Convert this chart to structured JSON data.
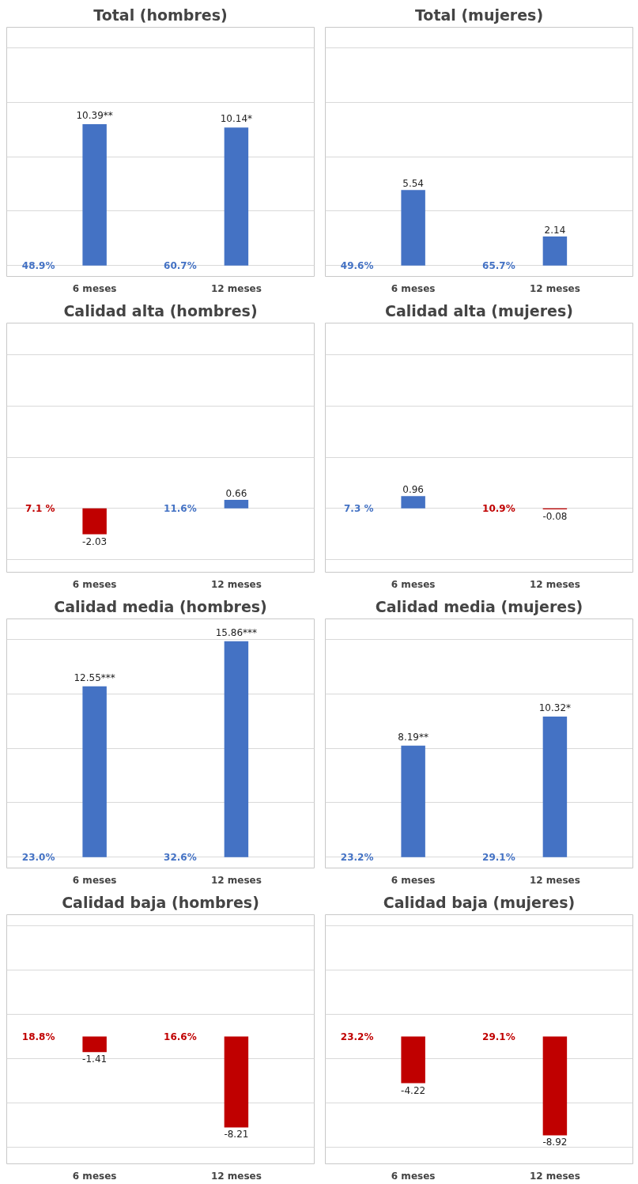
{
  "chart_data": [
    {
      "type": "bar",
      "title": "Total (hombres)",
      "categories": [
        "6 meses",
        "12 meses"
      ],
      "values": [
        10.39,
        10.14
      ],
      "value_labels": [
        "10.39**",
        "10.14*"
      ],
      "colors": [
        "#4472c4",
        "#4472c4"
      ],
      "ylim": [
        -0.8,
        17.5
      ],
      "yticks": [
        {
          "value": 0,
          "label": null
        },
        {
          "value": 4,
          "label": null
        },
        {
          "value": 8,
          "label": null
        },
        {
          "value": 12,
          "label": null
        },
        {
          "value": 16,
          "label": null
        }
      ],
      "grid": "y",
      "tick_labels": "x",
      "annotations": [
        "48.9%",
        "60.7%"
      ]
    },
    {
      "type": "bar",
      "title": "Total (mujeres)",
      "categories": [
        "6 meses",
        "12 meses"
      ],
      "values": [
        5.54,
        2.14
      ],
      "value_labels": [
        "5.54",
        "2.14"
      ],
      "colors": [
        "#4472c4",
        "#4472c4"
      ],
      "ylim": [
        -0.8,
        17.5
      ],
      "yticks": [
        {
          "value": 0,
          "label": null
        },
        {
          "value": 4,
          "label": null
        },
        {
          "value": 8,
          "label": null
        },
        {
          "value": 12,
          "label": null
        },
        {
          "value": 16,
          "label": null
        }
      ],
      "grid": "y",
      "tick_labels": "x",
      "annotations": [
        "49.6%",
        "65.7%"
      ]
    },
    {
      "type": "bar",
      "title": "Calidad alta (hombres)",
      "categories": [
        "6 meses",
        "12 meses"
      ],
      "values": [
        -2.03,
        0.66
      ],
      "value_labels": [
        "-2.03",
        "0.66"
      ],
      "colors": [
        "#c00000",
        "#4472c4"
      ],
      "ylim": [
        -5,
        14.5
      ],
      "yticks": [
        {
          "value": -4,
          "label": null
        },
        {
          "value": 0,
          "label": null
        },
        {
          "value": 4,
          "label": null
        },
        {
          "value": 8,
          "label": null
        },
        {
          "value": 12,
          "label": null
        }
      ],
      "grid": "y",
      "tick_labels": "x",
      "annotations": [
        "7.1 %",
        "11.6%"
      ]
    },
    {
      "type": "bar",
      "title": "Calidad alta (mujeres)",
      "categories": [
        "6 meses",
        "12 meses"
      ],
      "values": [
        0.96,
        -0.08
      ],
      "value_labels": [
        "0.96",
        "-0.08"
      ],
      "colors": [
        "#4472c4",
        "#c00000"
      ],
      "ylim": [
        -5,
        14.5
      ],
      "yticks": [
        {
          "value": -4,
          "label": null
        },
        {
          "value": 0,
          "label": null
        },
        {
          "value": 4,
          "label": null
        },
        {
          "value": 8,
          "label": null
        },
        {
          "value": 12,
          "label": null
        }
      ],
      "grid": "y",
      "tick_labels": "x",
      "annotations": [
        "7.3 %",
        "10.9%"
      ]
    },
    {
      "type": "bar",
      "title": "Calidad media (hombres)",
      "categories": [
        "6 meses",
        "12 meses"
      ],
      "values": [
        12.55,
        15.86
      ],
      "value_labels": [
        "12.55***",
        "15.86***"
      ],
      "colors": [
        "#4472c4",
        "#4472c4"
      ],
      "ylim": [
        -0.8,
        17.5
      ],
      "yticks": [
        {
          "value": 0,
          "label": null
        },
        {
          "value": 4,
          "label": null
        },
        {
          "value": 8,
          "label": null
        },
        {
          "value": 12,
          "label": null
        },
        {
          "value": 16,
          "label": null
        }
      ],
      "grid": "y",
      "tick_labels": "x",
      "annotations": [
        "23.0%",
        "32.6%"
      ]
    },
    {
      "type": "bar",
      "title": "Calidad media (mujeres)",
      "categories": [
        "6 meses",
        "12 meses"
      ],
      "values": [
        8.19,
        10.32
      ],
      "value_labels": [
        "8.19**",
        "10.32*"
      ],
      "colors": [
        "#4472c4",
        "#4472c4"
      ],
      "ylim": [
        -0.8,
        17.5
      ],
      "yticks": [
        {
          "value": 0,
          "label": null
        },
        {
          "value": 4,
          "label": null
        },
        {
          "value": 8,
          "label": null
        },
        {
          "value": 12,
          "label": null
        },
        {
          "value": 16,
          "label": null
        }
      ],
      "grid": "y",
      "tick_labels": "x",
      "annotations": [
        "23.2%",
        "29.1%"
      ]
    },
    {
      "type": "bar",
      "title": "Calidad baja (hombres)",
      "categories": [
        "6 meses",
        "12 meses"
      ],
      "values": [
        -1.41,
        -8.21
      ],
      "value_labels": [
        "-1.41",
        "-8.21"
      ],
      "colors": [
        "#c00000",
        "#c00000"
      ],
      "ylim": [
        -11.5,
        11
      ],
      "yticks": [
        {
          "value": -10,
          "label": null
        },
        {
          "value": -6,
          "label": null
        },
        {
          "value": -2,
          "label": null
        },
        {
          "value": 2,
          "label": null
        },
        {
          "value": 6,
          "label": null
        },
        {
          "value": 10,
          "label": null
        }
      ],
      "grid": "y",
      "tick_labels": "x",
      "annotations": [
        "18.8%",
        "16.6%"
      ]
    },
    {
      "type": "bar",
      "title": "Calidad baja (mujeres)",
      "categories": [
        "6 meses",
        "12 meses"
      ],
      "values": [
        -4.22,
        -8.92
      ],
      "value_labels": [
        "-4.22",
        "-8.92"
      ],
      "colors": [
        "#c00000",
        "#c00000"
      ],
      "ylim": [
        -11.5,
        11
      ],
      "yticks": [
        {
          "value": -10,
          "label": null
        },
        {
          "value": -6,
          "label": null
        },
        {
          "value": -2,
          "label": null
        },
        {
          "value": 2,
          "label": null
        },
        {
          "value": 6,
          "label": null
        },
        {
          "value": 10,
          "label": null
        }
      ],
      "grid": "y",
      "tick_labels": "x",
      "annotations": [
        "23.2%",
        "29.1%"
      ]
    }
  ]
}
